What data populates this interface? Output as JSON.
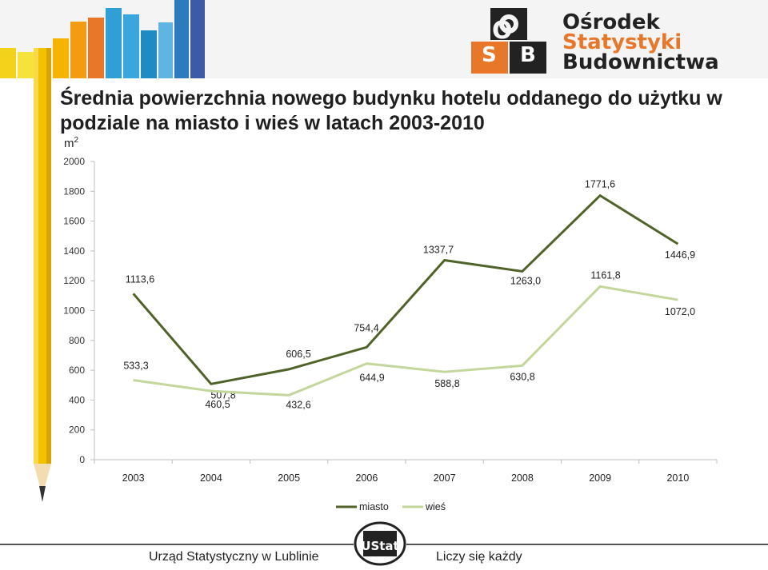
{
  "logo": {
    "line1": "Ośrodek",
    "line2": "Statystyki",
    "line3": "Budownictwa",
    "letters": [
      "O",
      "S",
      "B"
    ],
    "colors": {
      "dark": "#222222",
      "orange": "#e8772a"
    }
  },
  "chart_data": {
    "type": "line",
    "title": "Średnia powierzchnia nowego budynku hotelu oddanego do użytku w podziale na miasto i wieś w latach 2003-2010",
    "ylabel": "m",
    "ylabel_superscript": "2",
    "categories": [
      "2003",
      "2004",
      "2005",
      "2006",
      "2007",
      "2008",
      "2009",
      "2010"
    ],
    "ylim": [
      0,
      2000
    ],
    "yticks": [
      "0",
      "200",
      "400",
      "600",
      "800",
      "1000",
      "1200",
      "1400",
      "1600",
      "1800",
      "2000"
    ],
    "grid": false,
    "legend": "bottom",
    "series": [
      {
        "name": "miasto",
        "color": "#4f6228",
        "values": [
          1113.6,
          507.8,
          606.5,
          754.4,
          1337.7,
          1263.0,
          1771.6,
          1446.9
        ],
        "labels": [
          "1113,6",
          "507,8",
          "606,5",
          "754,4",
          "1337,7",
          "1263,0",
          "1771,6",
          "1446,9"
        ]
      },
      {
        "name": "wieś",
        "color": "#c3d69b",
        "values": [
          533.3,
          460.5,
          432.6,
          644.9,
          588.8,
          630.8,
          1161.8,
          1072.0
        ],
        "labels": [
          "533,3",
          "460,5",
          "432,6",
          "644,9",
          "588,8",
          "630,8",
          "1161,8",
          "1072,0"
        ]
      }
    ]
  },
  "footer": {
    "left": "Urząd Statystyczny w Lublinie",
    "right": "Liczy się każdy",
    "logo_text": "UStat"
  }
}
